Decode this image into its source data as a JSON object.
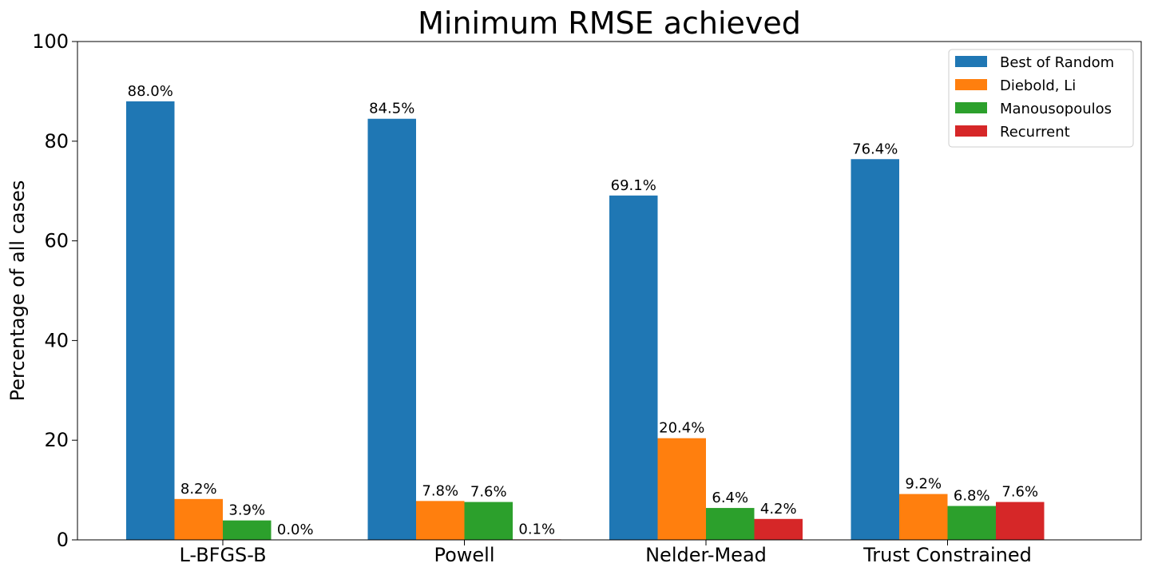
{
  "chart_data": {
    "type": "bar",
    "title": "Minimum RMSE achieved",
    "xlabel": "",
    "ylabel": "Percentage of all cases",
    "ylim": [
      0,
      100
    ],
    "yticks": [
      0,
      20,
      40,
      60,
      80,
      100
    ],
    "grid": false,
    "legend_position": "top-right",
    "categories": [
      "L-BFGS-B",
      "Powell",
      "Nelder-Mead",
      "Trust Constrained"
    ],
    "series": [
      {
        "name": "Best of Random",
        "color": "#1f77b4",
        "values": [
          88.0,
          84.5,
          69.1,
          76.4
        ],
        "labels": [
          "88.0%",
          "84.5%",
          "69.1%",
          "76.4%"
        ]
      },
      {
        "name": "Diebold, Li",
        "color": "#ff7f0e",
        "values": [
          8.2,
          7.8,
          20.4,
          9.2
        ],
        "labels": [
          "8.2%",
          "7.8%",
          "20.4%",
          "9.2%"
        ]
      },
      {
        "name": "Manousopoulos",
        "color": "#2ca02c",
        "values": [
          3.9,
          7.6,
          6.4,
          6.8
        ],
        "labels": [
          "3.9%",
          "7.6%",
          "6.4%",
          "6.8%"
        ]
      },
      {
        "name": "Recurrent",
        "color": "#d62728",
        "values": [
          0.0,
          0.1,
          4.2,
          7.6
        ],
        "labels": [
          "0.0%",
          "0.1%",
          "4.2%",
          "7.6%"
        ]
      }
    ]
  }
}
